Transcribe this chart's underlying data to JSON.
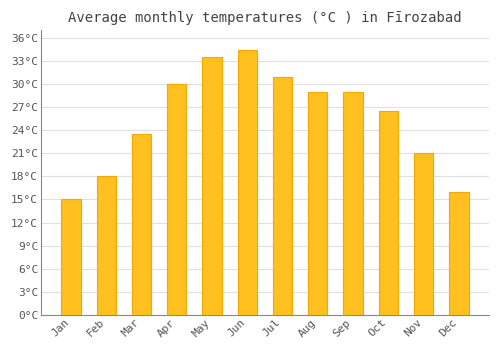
{
  "title": "Average monthly temperatures (°C ) in Fīrozabad",
  "months": [
    "Jan",
    "Feb",
    "Mar",
    "Apr",
    "May",
    "Jun",
    "Jul",
    "Aug",
    "Sep",
    "Oct",
    "Nov",
    "Dec"
  ],
  "temps": [
    15,
    18,
    23.5,
    30,
    33.5,
    34.5,
    31,
    29,
    29,
    26.5,
    21,
    16
  ],
  "bar_color": "#FFC020",
  "bar_edge_color": "#F5A800",
  "ylim": [
    0,
    37
  ],
  "yticks": [
    0,
    3,
    6,
    9,
    12,
    15,
    18,
    21,
    24,
    27,
    30,
    33,
    36
  ],
  "ytick_labels": [
    "0°C",
    "3°C",
    "6°C",
    "9°C",
    "12°C",
    "15°C",
    "18°C",
    "21°C",
    "24°C",
    "27°C",
    "30°C",
    "33°C",
    "36°C"
  ],
  "bg_color": "#ffffff",
  "grid_color": "#e0e0e0",
  "title_fontsize": 10,
  "tick_fontsize": 8,
  "bar_width": 0.55
}
